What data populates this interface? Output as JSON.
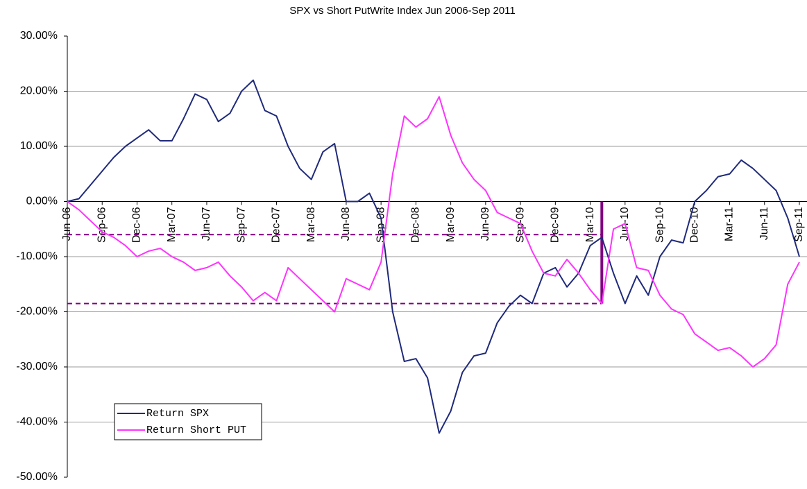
{
  "chart_data": {
    "type": "line",
    "title": "SPX vs Short PutWrite Index Jun 2006-Sep 2011",
    "categories": [
      "Jun-06",
      null,
      null,
      "Sep-06",
      null,
      null,
      "Dec-06",
      null,
      null,
      "Mar-07",
      null,
      null,
      "Jun-07",
      null,
      null,
      "Sep-07",
      null,
      null,
      "Dec-07",
      null,
      null,
      "Mar-08",
      null,
      null,
      "Jun-08",
      null,
      null,
      "Sep-08",
      null,
      null,
      "Dec-08",
      null,
      null,
      "Mar-09",
      null,
      null,
      "Jun-09",
      null,
      null,
      "Sep-09",
      null,
      null,
      "Dec-09",
      null,
      null,
      "Mar-10",
      null,
      null,
      "Jun-10",
      null,
      null,
      "Sep-10",
      null,
      null,
      "Dec-10",
      null,
      null,
      "Mar-11",
      null,
      null,
      "Jun-11",
      null,
      null,
      "Sep-11"
    ],
    "series": [
      {
        "name": "Return SPX",
        "color": "#1f2a7a",
        "values": [
          0,
          0.5,
          3,
          5.5,
          8,
          10,
          11.5,
          13,
          11,
          11,
          15,
          19.5,
          18.5,
          14.5,
          16,
          20,
          22,
          16.5,
          15.5,
          10,
          6,
          4,
          9,
          10.5,
          0,
          0,
          1.5,
          -3,
          -20,
          -29,
          -28.5,
          -32,
          -42,
          -38,
          -31,
          -28,
          -27.5,
          -22,
          -19,
          -17,
          -18.5,
          -13,
          -12,
          -15.5,
          -13,
          -8,
          -6.5,
          -13,
          -18.5,
          -13.5,
          -17,
          -10,
          -7,
          -7.5,
          0,
          2,
          4.5,
          5,
          7.5,
          6,
          4,
          2,
          -3,
          -10
        ]
      },
      {
        "name": "Return Short PUT",
        "color": "#ff33ff",
        "values": [
          0,
          -1.5,
          -3.5,
          -5.5,
          -6.5,
          -8,
          -10,
          -9,
          -8.5,
          -10,
          -11,
          -12.5,
          -12,
          -11,
          -13.5,
          -15.5,
          -18,
          -16.5,
          -18,
          -12,
          -14,
          -16,
          -18,
          -20,
          -14,
          -15,
          -16,
          -11,
          5,
          15.5,
          13.5,
          15,
          19,
          12,
          7,
          4,
          2,
          -2,
          -3,
          -4,
          -9,
          -13,
          -13.5,
          -10.5,
          -13,
          -16,
          -18.5,
          -5,
          -4,
          -12,
          -12.5,
          -17,
          -19.5,
          -20.5,
          -24,
          -25.5,
          -27,
          -26.5,
          -28,
          -30,
          -28.5,
          -26,
          -15,
          -11
        ]
      }
    ],
    "ylim": [
      -50,
      30
    ],
    "yticks": [
      {
        "value": 30,
        "label": "30.00%"
      },
      {
        "value": 20,
        "label": "20.00%"
      },
      {
        "value": 10,
        "label": "10.00%"
      },
      {
        "value": 0,
        "label": "0.00%"
      },
      {
        "value": -10,
        "label": "-10.00%"
      },
      {
        "value": -20,
        "label": "-20.00%"
      },
      {
        "value": -30,
        "label": "-30.00%"
      },
      {
        "value": -40,
        "label": "-40.00%"
      },
      {
        "value": -50,
        "label": "-50.00%"
      }
    ],
    "grid": true,
    "reference_lines": [
      -6,
      -18.5
    ],
    "reference_color": "#800080",
    "highlight_index": 46,
    "legend": "lower-left"
  }
}
